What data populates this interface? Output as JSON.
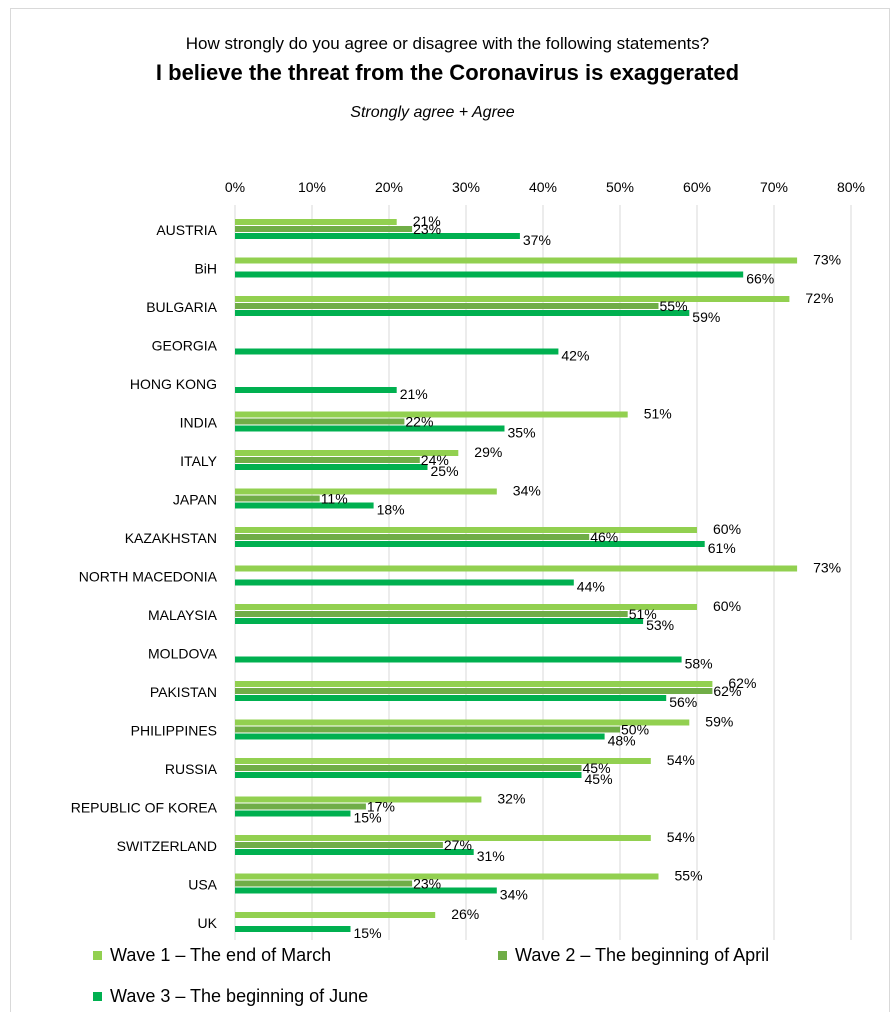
{
  "chart_data": {
    "type": "bar",
    "orientation": "horizontal",
    "title": "I believe the threat from the Coronavirus is exaggerated",
    "supertitle": "How strongly do you agree or disagree with the following statements?",
    "subtitle": "Strongly agree + Agree",
    "xlim": [
      0,
      80
    ],
    "ticks": [
      "0%",
      "10%",
      "20%",
      "30%",
      "40%",
      "50%",
      "60%",
      "70%",
      "80%"
    ],
    "grid": true,
    "legend_position": "bottom",
    "categories": [
      "AUSTRIA",
      "BiH",
      "BULGARIA",
      "GEORGIA",
      "HONG KONG",
      "INDIA",
      "ITALY",
      "JAPAN",
      "KAZAKHSTAN",
      "NORTH MACEDONIA",
      "MALAYSIA",
      "MOLDOVA",
      "PAKISTAN",
      "PHILIPPINES",
      "RUSSIA",
      "REPUBLIC OF KOREA",
      "SWITZERLAND",
      "USA",
      "UK"
    ],
    "series": [
      {
        "name": "Wave 1 – The end of March",
        "color": "#92d050",
        "values": [
          21,
          73,
          72,
          null,
          null,
          51,
          29,
          34,
          60,
          73,
          60,
          null,
          62,
          59,
          54,
          32,
          54,
          55,
          26
        ]
      },
      {
        "name": "Wave 2 – The beginning of April",
        "color": "#70ad47",
        "values": [
          23,
          null,
          55,
          null,
          null,
          22,
          24,
          11,
          46,
          null,
          51,
          null,
          62,
          50,
          45,
          17,
          27,
          23,
          null
        ]
      },
      {
        "name": "Wave 3 – The beginning of June",
        "color": "#00b050",
        "values": [
          37,
          66,
          59,
          42,
          21,
          35,
          25,
          18,
          61,
          44,
          53,
          58,
          56,
          48,
          45,
          15,
          31,
          34,
          15
        ]
      }
    ]
  }
}
